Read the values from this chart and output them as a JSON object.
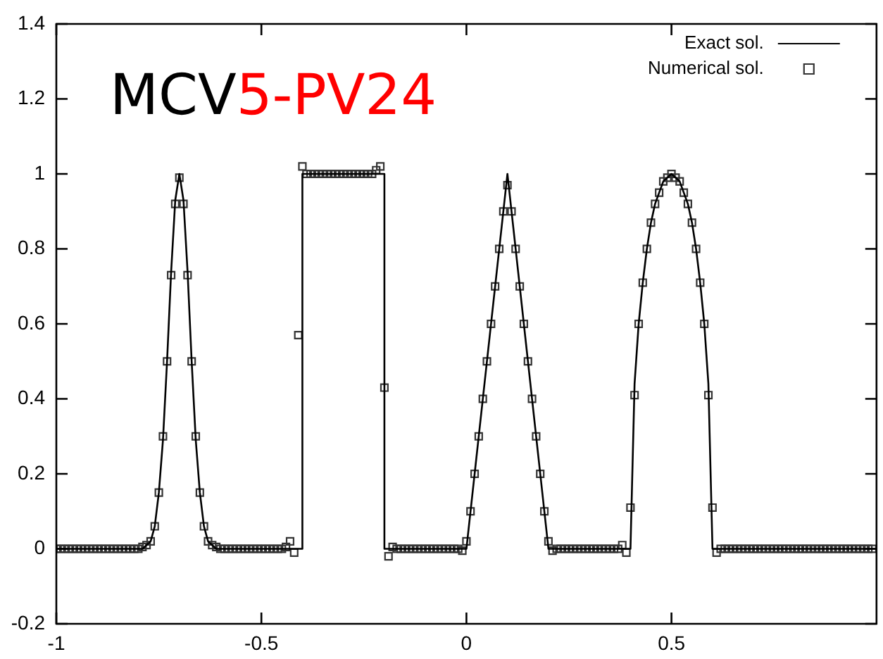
{
  "chart_data": {
    "type": "line",
    "annotations": [
      "MCV",
      "5-PV24"
    ],
    "xlim": [
      -1,
      1
    ],
    "xticks": [
      -1,
      -0.5,
      0,
      0.5
    ],
    "ylim": [
      -0.2,
      1.4
    ],
    "yticks": [
      -0.2,
      0,
      0.2,
      0.4,
      0.6,
      0.8,
      1,
      1.2,
      1.4
    ],
    "grid": false,
    "legend": "top right",
    "series": [
      {
        "name": "Exact sol.",
        "marker": "none",
        "color": "#000000",
        "x": [
          -1,
          -0.8,
          -0.79,
          -0.78,
          -0.77,
          -0.76,
          -0.75,
          -0.74,
          -0.73,
          -0.72,
          -0.71,
          -0.7,
          -0.69,
          -0.68,
          -0.67,
          -0.66,
          -0.65,
          -0.64,
          -0.63,
          -0.62,
          -0.61,
          -0.6,
          -0.4,
          -0.4,
          -0.2,
          -0.2,
          0,
          0.1,
          0.2,
          0.4,
          0.41,
          0.42,
          0.43,
          0.44,
          0.45,
          0.46,
          0.47,
          0.48,
          0.49,
          0.5,
          0.51,
          0.52,
          0.53,
          0.54,
          0.55,
          0.56,
          0.57,
          0.58,
          0.59,
          0.6,
          1
        ],
        "values": [
          0,
          0,
          0,
          0.01,
          0.02,
          0.06,
          0.15,
          0.29,
          0.5,
          0.74,
          0.93,
          1,
          0.93,
          0.74,
          0.5,
          0.29,
          0.15,
          0.06,
          0.02,
          0.01,
          0,
          0,
          0,
          1,
          1,
          0,
          0,
          1,
          0,
          0,
          0.44,
          0.6,
          0.71,
          0.8,
          0.87,
          0.92,
          0.95,
          0.98,
          0.99,
          1,
          0.99,
          0.98,
          0.95,
          0.92,
          0.87,
          0.8,
          0.71,
          0.6,
          0.44,
          0,
          0
        ]
      },
      {
        "name": "Numerical sol.",
        "type": "scatter",
        "marker": "square",
        "color": "#333333",
        "x": [
          -1,
          -0.99,
          -0.98,
          -0.97,
          -0.96,
          -0.95,
          -0.94,
          -0.93,
          -0.92,
          -0.91,
          -0.9,
          -0.89,
          -0.88,
          -0.87,
          -0.86,
          -0.85,
          -0.84,
          -0.83,
          -0.82,
          -0.81,
          -0.8,
          -0.79,
          -0.78,
          -0.77,
          -0.76,
          -0.75,
          -0.74,
          -0.73,
          -0.72,
          -0.71,
          -0.7,
          -0.69,
          -0.68,
          -0.67,
          -0.66,
          -0.65,
          -0.64,
          -0.63,
          -0.62,
          -0.61,
          -0.6,
          -0.59,
          -0.58,
          -0.57,
          -0.56,
          -0.55,
          -0.54,
          -0.53,
          -0.52,
          -0.51,
          -0.5,
          -0.49,
          -0.48,
          -0.47,
          -0.46,
          -0.45,
          -0.44,
          -0.43,
          -0.42,
          -0.41,
          -0.4,
          -0.39,
          -0.38,
          -0.37,
          -0.36,
          -0.35,
          -0.34,
          -0.33,
          -0.32,
          -0.31,
          -0.3,
          -0.29,
          -0.28,
          -0.27,
          -0.26,
          -0.25,
          -0.24,
          -0.23,
          -0.22,
          -0.21,
          -0.2,
          -0.19,
          -0.18,
          -0.17,
          -0.16,
          -0.15,
          -0.14,
          -0.13,
          -0.12,
          -0.11,
          -0.1,
          -0.09,
          -0.08,
          -0.07,
          -0.06,
          -0.05,
          -0.04,
          -0.03,
          -0.02,
          -0.01,
          0,
          0.01,
          0.02,
          0.03,
          0.04,
          0.05,
          0.06,
          0.07,
          0.08,
          0.09,
          0.1,
          0.11,
          0.12,
          0.13,
          0.14,
          0.15,
          0.16,
          0.17,
          0.18,
          0.19,
          0.2,
          0.21,
          0.22,
          0.23,
          0.24,
          0.25,
          0.26,
          0.27,
          0.28,
          0.29,
          0.3,
          0.31,
          0.32,
          0.33,
          0.34,
          0.35,
          0.36,
          0.37,
          0.38,
          0.39,
          0.4,
          0.41,
          0.42,
          0.43,
          0.44,
          0.45,
          0.46,
          0.47,
          0.48,
          0.49,
          0.5,
          0.51,
          0.52,
          0.53,
          0.54,
          0.55,
          0.56,
          0.57,
          0.58,
          0.59,
          0.6,
          0.61,
          0.62,
          0.63,
          0.64,
          0.65,
          0.66,
          0.67,
          0.68,
          0.69,
          0.7,
          0.71,
          0.72,
          0.73,
          0.74,
          0.75,
          0.76,
          0.77,
          0.78,
          0.79,
          0.8,
          0.81,
          0.82,
          0.83,
          0.84,
          0.85,
          0.86,
          0.87,
          0.88,
          0.89,
          0.9,
          0.91,
          0.92,
          0.93,
          0.94,
          0.95,
          0.96,
          0.97,
          0.98,
          0.99
        ],
        "values": [
          0,
          0,
          0,
          0,
          0,
          0,
          0,
          0,
          0,
          0,
          0,
          0,
          0,
          0,
          0,
          0,
          0,
          0,
          0,
          0,
          0,
          0.005,
          0.01,
          0.02,
          0.06,
          0.15,
          0.3,
          0.5,
          0.73,
          0.92,
          0.99,
          0.92,
          0.73,
          0.5,
          0.3,
          0.15,
          0.06,
          0.02,
          0.01,
          0.005,
          0,
          0,
          0,
          0,
          0,
          0,
          0,
          0,
          0,
          0,
          0,
          0,
          0,
          0,
          0,
          0,
          0.005,
          0.02,
          -0.01,
          0.57,
          1.02,
          1,
          1,
          1,
          1,
          1,
          1,
          1,
          1,
          1,
          1,
          1,
          1,
          1,
          1,
          1,
          1,
          1,
          1.01,
          1.02,
          0.43,
          -0.02,
          0.005,
          0,
          0,
          0,
          0,
          0,
          0,
          0,
          0,
          0,
          0,
          0,
          0,
          0,
          0,
          0,
          0,
          -0.005,
          0.02,
          0.1,
          0.2,
          0.3,
          0.4,
          0.5,
          0.6,
          0.7,
          0.8,
          0.9,
          0.97,
          0.9,
          0.8,
          0.7,
          0.6,
          0.5,
          0.4,
          0.3,
          0.2,
          0.1,
          0.02,
          -0.005,
          0,
          0,
          0,
          0,
          0,
          0,
          0,
          0,
          0,
          0,
          0,
          0,
          0,
          0,
          0,
          0,
          0.01,
          -0.01,
          0.11,
          0.41,
          0.6,
          0.71,
          0.8,
          0.87,
          0.92,
          0.95,
          0.98,
          0.99,
          1,
          0.99,
          0.98,
          0.95,
          0.92,
          0.87,
          0.8,
          0.71,
          0.6,
          0.41,
          0.11,
          -0.01,
          0,
          0,
          0,
          0,
          0,
          0,
          0,
          0,
          0,
          0,
          0,
          0,
          0,
          0,
          0,
          0,
          0,
          0,
          0,
          0,
          0,
          0,
          0,
          0,
          0,
          0,
          0,
          0,
          0,
          0,
          0,
          0,
          0,
          0,
          0,
          0,
          0,
          0
        ]
      }
    ]
  }
}
